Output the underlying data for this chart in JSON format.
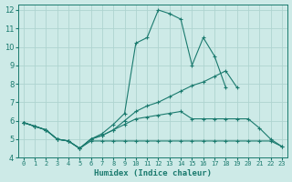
{
  "xlabel": "Humidex (Indice chaleur)",
  "x_values": [
    0,
    1,
    2,
    3,
    4,
    5,
    6,
    7,
    8,
    9,
    10,
    11,
    12,
    13,
    14,
    15,
    16,
    17,
    18,
    19,
    20,
    21,
    22,
    23
  ],
  "line_peak": [
    5.9,
    5.7,
    5.5,
    5.0,
    4.9,
    4.5,
    5.0,
    5.3,
    5.8,
    6.4,
    10.2,
    10.5,
    12.0,
    11.8,
    11.5,
    9.0,
    10.5,
    9.5,
    7.8,
    null,
    null,
    null,
    null,
    null
  ],
  "line_diag": [
    5.9,
    5.7,
    5.5,
    5.0,
    4.9,
    4.5,
    5.0,
    5.2,
    5.5,
    6.0,
    6.5,
    6.8,
    7.0,
    7.3,
    7.6,
    7.9,
    8.1,
    8.4,
    8.7,
    7.8,
    null,
    null,
    null,
    null
  ],
  "line_flat": [
    5.9,
    5.7,
    5.5,
    5.0,
    4.9,
    4.5,
    4.9,
    4.9,
    4.9,
    4.9,
    4.9,
    4.9,
    4.9,
    4.9,
    4.9,
    4.9,
    4.9,
    4.9,
    4.9,
    4.9,
    4.9,
    4.9,
    4.9,
    4.6
  ],
  "line_mid": [
    5.9,
    5.7,
    5.5,
    5.0,
    4.9,
    4.5,
    5.0,
    5.2,
    5.5,
    5.8,
    6.1,
    6.2,
    6.3,
    6.4,
    6.5,
    6.1,
    6.1,
    6.1,
    6.1,
    6.1,
    6.1,
    5.6,
    5.0,
    4.6
  ],
  "bg_color": "#cdeae7",
  "line_color": "#1a7a6e",
  "grid_color": "#aed4d0",
  "ylim": [
    4,
    12.3
  ],
  "xlim": [
    -0.5,
    23.5
  ],
  "yticks": [
    4,
    5,
    6,
    7,
    8,
    9,
    10,
    11,
    12
  ],
  "xtick_labels": [
    "0",
    "1",
    "2",
    "3",
    "4",
    "5",
    "6",
    "7",
    "8",
    "9",
    "10",
    "11",
    "12",
    "13",
    "14",
    "15",
    "16",
    "17",
    "18",
    "19",
    "20",
    "21",
    "22",
    "23"
  ]
}
